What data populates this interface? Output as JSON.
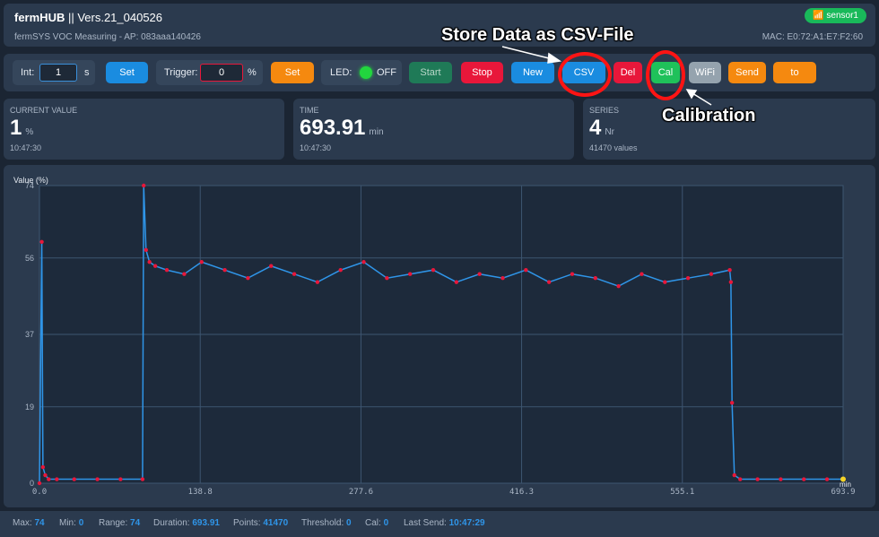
{
  "header": {
    "title": "fermHUB",
    "version": " || Vers.21_040526",
    "subtitle": "fermSYS VOC Measuring - AP: 083aaa140426",
    "mac": "MAC: E0:72:A1:E7:F2:60",
    "sensor_badge": "sensor1"
  },
  "controls": {
    "int_label": "Int:",
    "int_value": "1",
    "int_unit": "s",
    "set1": "Set",
    "trigger_label": "Trigger:",
    "trigger_value": "0",
    "trigger_unit": "%",
    "set2": "Set",
    "led_label": "LED:",
    "led_state": "OFF",
    "start": "Start",
    "stop": "Stop",
    "new": "New",
    "csv": "CSV",
    "del": "Del",
    "cal": "Cal",
    "wifi": "WiFi",
    "send": "Send",
    "to": "to"
  },
  "cards": [
    {
      "label": "CURRENT VALUE",
      "value": "1",
      "unit": "%",
      "sub": "10:47:30"
    },
    {
      "label": "TIME",
      "value": "693.91",
      "unit": "min",
      "sub": "10:47:30"
    },
    {
      "label": "SERIES",
      "value": "4",
      "unit": "Nr",
      "sub": "41470 values"
    }
  ],
  "annotations": {
    "csv_note": "Store Data as CSV-File",
    "cal_note": "Calibration"
  },
  "footer": {
    "max_label": "Max:",
    "max": "74",
    "min_label": "Min:",
    "min": "0",
    "range_label": "Range:",
    "range": "74",
    "duration_label": "Duration:",
    "duration": "693.91",
    "points_label": "Points:",
    "points": "41470",
    "threshold_label": "Threshold:",
    "threshold": "0",
    "cal_label": "Cal:",
    "cal": "0",
    "lastsend_label": "Last Send:",
    "lastsend": "10:47:29"
  },
  "colors": {
    "line": "#2f95e8",
    "marker": "#e8173a",
    "grid": "#3d5570",
    "last_point": "#f5d327"
  },
  "chart_data": {
    "type": "line",
    "ylabel": "Value (%)",
    "xunit": "min",
    "xlim": [
      0,
      693.9
    ],
    "ylim": [
      0,
      74
    ],
    "xticks": [
      "0.0",
      "138.8",
      "277.6",
      "416.3",
      "555.1",
      "693.9"
    ],
    "yticks": [
      "0",
      "19",
      "37",
      "56",
      "74"
    ],
    "series": [
      {
        "x": [
          0,
          2,
          3,
          5,
          8,
          15,
          30,
          50,
          70,
          89,
          90,
          92,
          95,
          100,
          110,
          125,
          140,
          160,
          180,
          200,
          220,
          240,
          260,
          280,
          300,
          320,
          340,
          360,
          380,
          400,
          420,
          440,
          460,
          480,
          500,
          520,
          540,
          560,
          580,
          596,
          597,
          598,
          600,
          605,
          620,
          640,
          660,
          680,
          693.9
        ],
        "y": [
          0,
          60,
          4,
          2,
          1,
          1,
          1,
          1,
          1,
          1,
          74,
          58,
          55,
          54,
          53,
          52,
          55,
          53,
          51,
          54,
          52,
          50,
          53,
          55,
          51,
          52,
          53,
          50,
          52,
          51,
          53,
          50,
          52,
          51,
          49,
          52,
          50,
          51,
          52,
          53,
          50,
          20,
          2,
          1,
          1,
          1,
          1,
          1,
          1
        ]
      }
    ]
  }
}
